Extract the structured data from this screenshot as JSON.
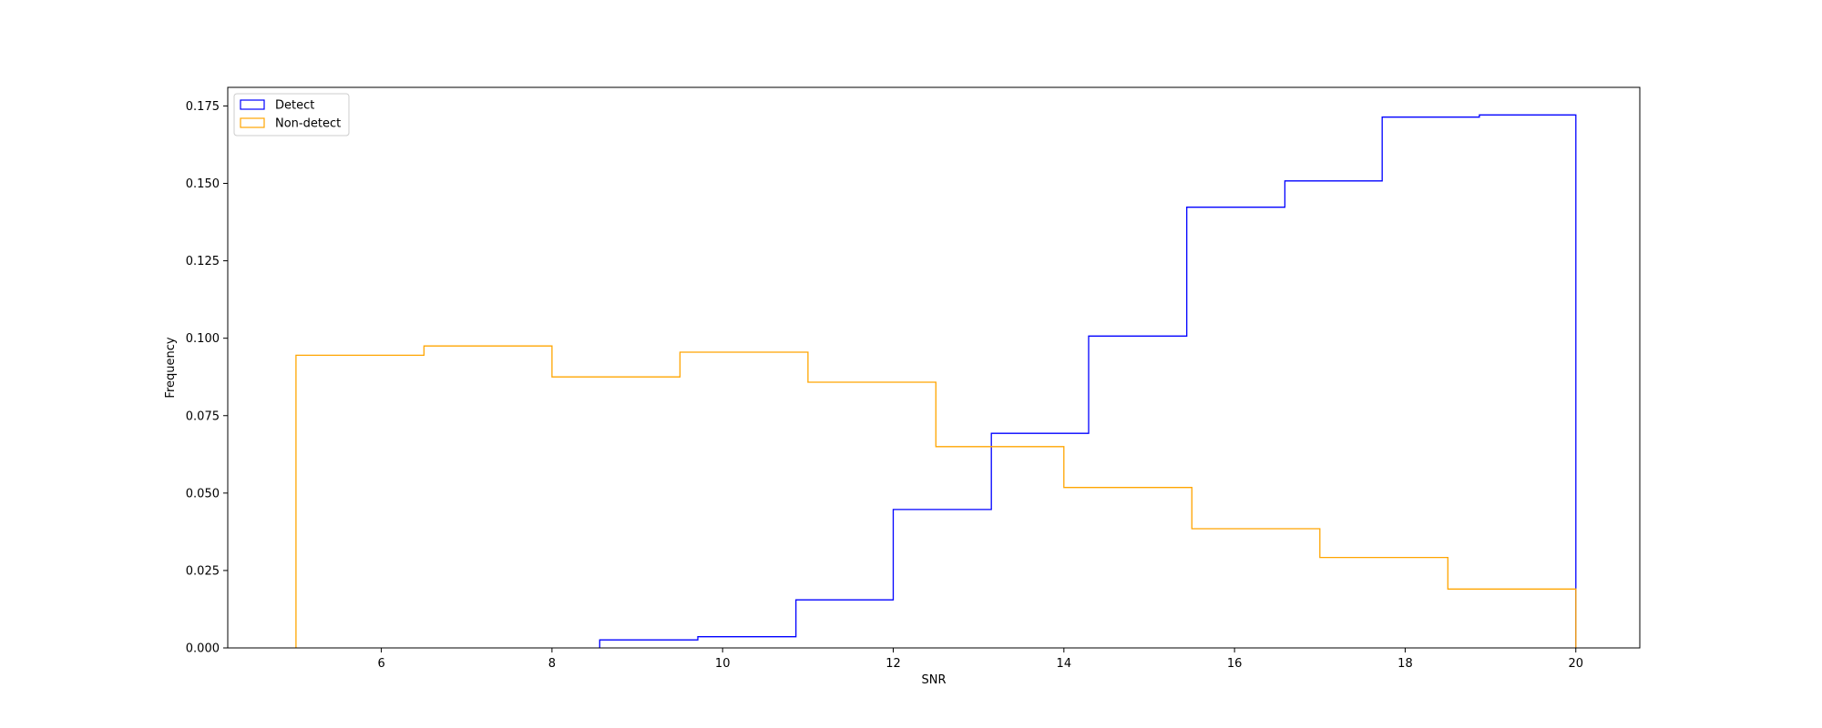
{
  "chart_data": {
    "type": "histogram",
    "title": "",
    "xlabel": "SNR",
    "ylabel": "Frequency",
    "xlim": [
      4.2,
      20.75
    ],
    "ylim": [
      0,
      0.181
    ],
    "xticks": [
      6,
      8,
      10,
      12,
      14,
      16,
      18,
      20
    ],
    "xtick_labels": [
      "6",
      "8",
      "10",
      "12",
      "14",
      "16",
      "18",
      "20"
    ],
    "yticks": [
      0,
      0.025,
      0.05,
      0.075,
      0.1,
      0.125,
      0.15,
      0.175
    ],
    "ytick_labels": [
      "0.000",
      "0.025",
      "0.050",
      "0.075",
      "0.100",
      "0.125",
      "0.150",
      "0.175"
    ],
    "grid": false,
    "legend_position": "top-left",
    "series": [
      {
        "name": "Detect",
        "color": "#0000ff",
        "bin_edges": [
          8.56,
          9.71,
          10.86,
          12.0,
          13.15,
          14.29,
          15.44,
          16.59,
          17.73,
          18.87,
          20.0
        ],
        "values": [
          0.0026,
          0.0036,
          0.0155,
          0.0447,
          0.0693,
          0.1007,
          0.1423,
          0.1508,
          0.1714,
          0.1721
        ]
      },
      {
        "name": "Non-detect",
        "color": "#ffa500",
        "bin_edges": [
          5.0,
          6.5,
          8.0,
          9.5,
          11.0,
          12.5,
          14.0,
          15.5,
          17.0,
          18.5,
          20.0
        ],
        "values": [
          0.0945,
          0.0975,
          0.0875,
          0.0955,
          0.0858,
          0.065,
          0.0518,
          0.0385,
          0.0292,
          0.019
        ]
      }
    ]
  }
}
